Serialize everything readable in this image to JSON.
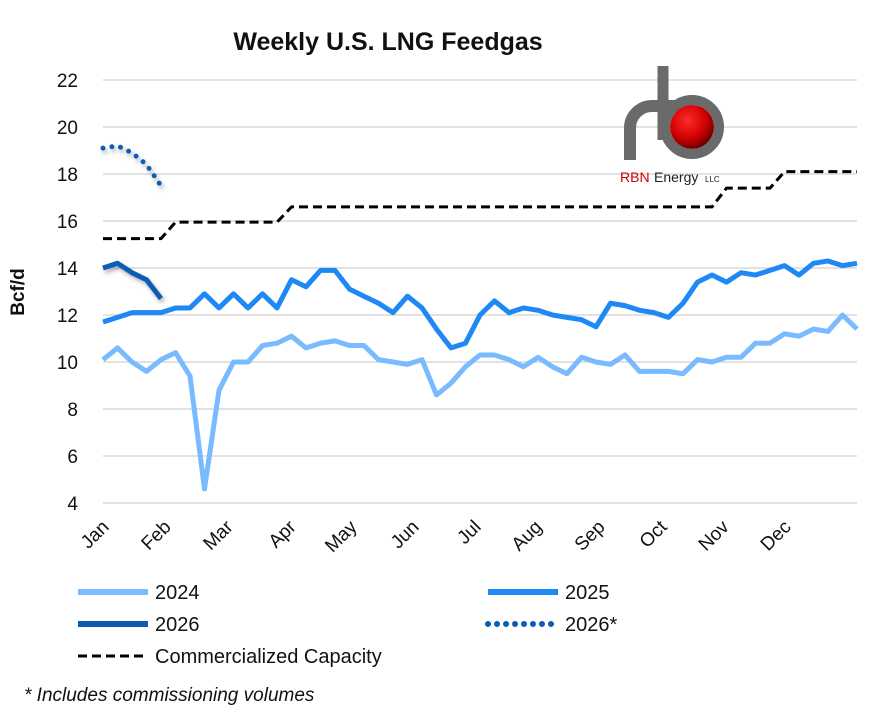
{
  "chart_data": {
    "type": "line",
    "title": "Weekly U.S. LNG Feedgas",
    "ylabel": "Bcf/d",
    "xlabel": "",
    "ylim": [
      4,
      22
    ],
    "yticks": [
      4,
      6,
      8,
      10,
      12,
      14,
      16,
      18,
      20,
      22
    ],
    "grid": true,
    "legend_position": "bottom",
    "month_labels": [
      "Jan",
      "Feb",
      "Mar",
      "Apr",
      "May",
      "Jun",
      "Jul",
      "Aug",
      "Sep",
      "Oct",
      "Nov",
      "Dec"
    ],
    "x_unit": "week of year",
    "series": [
      {
        "name": "2024",
        "color": "#7ABAFF",
        "style": "solid",
        "values": [
          10.1,
          10.6,
          10.0,
          9.6,
          10.1,
          10.4,
          9.4,
          4.6,
          8.8,
          10.0,
          10.0,
          10.7,
          10.8,
          11.1,
          10.6,
          10.8,
          10.9,
          10.7,
          10.7,
          10.1,
          10.0,
          9.9,
          10.1,
          8.6,
          9.1,
          9.8,
          10.3,
          10.3,
          10.1,
          9.8,
          10.2,
          9.8,
          9.5,
          10.2,
          10.0,
          9.9,
          10.3,
          9.6,
          9.6,
          9.6,
          9.5,
          10.1,
          10.0,
          10.2,
          10.2,
          10.8,
          10.8,
          11.2,
          11.1,
          11.4,
          11.3,
          12.0,
          11.4
        ]
      },
      {
        "name": "2025",
        "color": "#1E88F5",
        "style": "solid",
        "values": [
          11.7,
          11.9,
          12.1,
          12.1,
          12.1,
          12.3,
          12.3,
          12.9,
          12.3,
          12.9,
          12.3,
          12.9,
          12.3,
          13.5,
          13.2,
          13.9,
          13.9,
          13.1,
          12.8,
          12.5,
          12.1,
          12.8,
          12.3,
          11.4,
          10.6,
          10.8,
          12.0,
          12.6,
          12.1,
          12.3,
          12.2,
          12.0,
          11.9,
          11.8,
          11.5,
          12.5,
          12.4,
          12.2,
          12.1,
          11.9,
          12.5,
          13.4,
          13.7,
          13.4,
          13.8,
          13.7,
          13.9,
          14.1,
          13.7,
          14.2,
          14.3,
          14.1,
          14.2
        ]
      },
      {
        "name": "2026",
        "color": "#0B5CB5",
        "style": "solid",
        "values": [
          14.0,
          14.2,
          13.8,
          13.5,
          12.7
        ]
      },
      {
        "name": "2026*",
        "color": "#0B5CB5",
        "style": "dotted",
        "values": [
          19.1,
          19.2,
          18.9,
          18.4,
          17.5
        ]
      },
      {
        "name": "Commercialized Capacity",
        "color": "#000000",
        "style": "dashed",
        "values": [
          15.25,
          15.25,
          15.25,
          15.25,
          15.25,
          15.95,
          15.95,
          15.95,
          15.95,
          15.95,
          15.95,
          15.95,
          15.95,
          16.6,
          16.6,
          16.6,
          16.6,
          16.6,
          16.6,
          16.6,
          16.6,
          16.6,
          16.6,
          16.6,
          16.6,
          16.6,
          16.6,
          16.6,
          16.6,
          16.6,
          16.6,
          16.6,
          16.6,
          16.6,
          16.6,
          16.6,
          16.6,
          16.6,
          16.6,
          16.6,
          16.6,
          16.6,
          16.6,
          17.4,
          17.4,
          17.4,
          17.4,
          18.1,
          18.1,
          18.1,
          18.1,
          18.1,
          18.1
        ]
      }
    ],
    "footnote": "* Includes commissioning volumes"
  },
  "logo": {
    "text_red": "RBN",
    "text_dark": "Energy",
    "text_small": "LLC"
  }
}
